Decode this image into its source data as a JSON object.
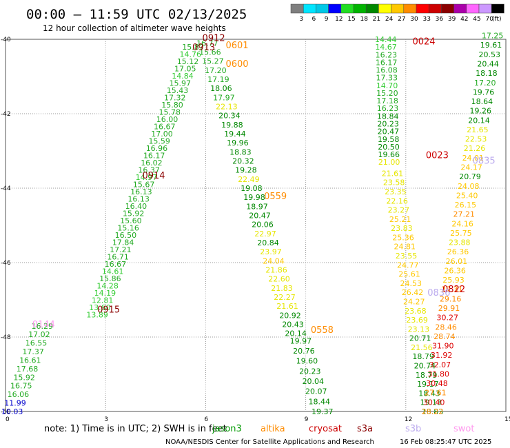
{
  "header": {
    "title": "00:00 – 11:59 UTC 02/13/2025",
    "subtitle": "12 hour collection of altimeter wave heights"
  },
  "colorbar": {
    "labels": [
      "3",
      "6",
      "9",
      "12",
      "15",
      "18",
      "21",
      "24",
      "27",
      "30",
      "33",
      "36",
      "39",
      "42",
      "45",
      "70"
    ],
    "unit": "(ft)",
    "colors": [
      "#7f7f7f",
      "#00e5ff",
      "#00c8e6",
      "#0000ff",
      "#22dd22",
      "#00b400",
      "#008800",
      "#ffff00",
      "#ffc800",
      "#ff8c00",
      "#ff0000",
      "#cc0000",
      "#8b0000",
      "#aa00aa",
      "#ff66ff",
      "#cc99ff",
      "#000000"
    ]
  },
  "legend": {
    "note": "note:  1) Time is in UTC;  2) SWH is in feet",
    "items": [
      {
        "name": "jason3",
        "color": "#009900"
      },
      {
        "name": "altika",
        "color": "#ff8c00"
      },
      {
        "name": "cryosat",
        "color": "#cc0000"
      },
      {
        "name": "s3a",
        "color": "#8b0000"
      },
      {
        "name": "s3b",
        "color": "#bbaaee"
      },
      {
        "name": "swot",
        "color": "#ff99ee"
      }
    ]
  },
  "credit": {
    "left": "NOAA/NESDIS Center for Satellite Applications and Research",
    "right": "16 Feb 08:25:47 UTC 2025"
  },
  "chart_data": {
    "type": "scatter",
    "xlim": [
      0,
      15
    ],
    "ylim": [
      -50,
      -40
    ],
    "xticks": [
      "0",
      "3",
      "6",
      "9",
      "12",
      "15"
    ],
    "yticks": [
      "-40",
      "-42",
      "-44",
      "-46",
      "-48",
      "-50"
    ],
    "grid": true,
    "time_labels": [
      {
        "x": 5.9,
        "y": -39.95,
        "t": "0912",
        "c": "#8b0000"
      },
      {
        "x": 5.6,
        "y": -40.2,
        "t": "0913",
        "c": "#8b0000"
      },
      {
        "x": 6.6,
        "y": -40.15,
        "t": "0601",
        "c": "#ff8c00"
      },
      {
        "x": 6.6,
        "y": -40.65,
        "t": "0600",
        "c": "#ff8c00"
      },
      {
        "x": 4.1,
        "y": -43.65,
        "t": "0914",
        "c": "#8b0000"
      },
      {
        "x": 2.75,
        "y": -47.25,
        "t": "0915",
        "c": "#8b0000"
      },
      {
        "x": 0.8,
        "y": -47.65,
        "t": "0144",
        "c": "#ff99ee"
      },
      {
        "x": 7.75,
        "y": -44.2,
        "t": "0559",
        "c": "#ff8c00"
      },
      {
        "x": 9.15,
        "y": -47.8,
        "t": "0558",
        "c": "#ff8c00"
      },
      {
        "x": 12.2,
        "y": -40.05,
        "t": "0024",
        "c": "#cc0000"
      },
      {
        "x": 12.6,
        "y": -43.1,
        "t": "0023",
        "c": "#cc0000"
      },
      {
        "x": 14.0,
        "y": -43.25,
        "t": "0835",
        "c": "#bbaaee"
      },
      {
        "x": 13.1,
        "y": -46.7,
        "t": "0822",
        "c": "#cc0000"
      },
      {
        "x": 12.65,
        "y": -46.8,
        "t": "0836",
        "c": "#bbaaee"
      }
    ],
    "tracks": [
      {
        "name": "s3a",
        "color": "#8b0000",
        "x0": 5.62,
        "x1": 2.75,
        "y0": -40.2,
        "y1": -47.4,
        "step": 0.2,
        "values": [
          15.87,
          14.76,
          15.12,
          17.05,
          14.84,
          15.97,
          15.43,
          17.32,
          15.8,
          15.78,
          16.0,
          16.67,
          17.0,
          15.59,
          16.96,
          16.17,
          16.02,
          16.37,
          14.97,
          15.67,
          16.13,
          16.13,
          16.4,
          15.92,
          15.6,
          15.16,
          16.5,
          17.84,
          17.21,
          16.71,
          16.67,
          14.61,
          15.86,
          14.28,
          14.19,
          12.81,
          13.6,
          13.89
        ]
      },
      {
        "name": "s3a-b",
        "color": "#008800",
        "x0": 1.1,
        "x1": 0.2,
        "y0": -47.7,
        "y1": -50.0,
        "step": 0.2,
        "values": [
          16.29,
          17.02,
          16.55,
          17.37,
          16.61,
          17.68,
          15.92,
          16.75,
          16.06,
          11.99,
          10.03
        ]
      },
      {
        "name": "altika",
        "color": "#ff8c00",
        "x0": 6.05,
        "x1": 8.7,
        "y0": -40.1,
        "y1": -47.9,
        "step": 0.2,
        "values": [
          16.77,
          15.66,
          15.27,
          17.2,
          17.19,
          18.06,
          17.97,
          22.13,
          20.34,
          19.88,
          19.44,
          19.96,
          18.83,
          20.32,
          19.28,
          22.49,
          19.08,
          19.98,
          18.97,
          20.47,
          20.06,
          22.97,
          20.84,
          23.97,
          24.04,
          21.86,
          22.6,
          21.83,
          22.27,
          21.61,
          20.92,
          20.43,
          20.14
        ]
      },
      {
        "name": "jason3",
        "color": "#009900",
        "x0": 8.85,
        "x1": 9.5,
        "y0": -48.1,
        "y1": -50.0,
        "step": 0.2,
        "values": [
          19.97,
          20.76,
          19.6,
          20.23,
          20.04,
          20.07,
          18.44,
          19.37
        ]
      },
      {
        "name": "cryosat",
        "color": "#cc0000",
        "x0": 11.4,
        "x1": 11.5,
        "y0": -40.0,
        "y1": -43.3,
        "step": 0.2,
        "values": [
          14.44,
          14.67,
          16.23,
          16.17,
          16.08,
          17.33,
          14.7,
          15.2,
          17.18,
          16.23,
          18.84,
          20.23,
          20.47,
          19.58,
          20.5,
          19.66,
          21.0
        ]
      },
      {
        "name": "swot",
        "color": "#cc0000",
        "x0": 11.6,
        "x1": 12.8,
        "y0": -43.6,
        "y1": -50.0,
        "step": 0.2,
        "values": [
          21.61,
          23.58,
          23.35,
          22.16,
          23.27,
          25.21,
          23.83,
          25.36,
          24.81,
          23.55,
          24.77,
          25.61,
          24.53,
          26.42,
          24.27,
          23.68,
          23.69,
          23.13,
          20.71,
          21.56,
          18.79,
          20.74,
          18.79,
          19.17,
          18.43,
          19.13,
          18.83
        ]
      },
      {
        "name": "s3b",
        "color": "#bbaaee",
        "x0": 14.6,
        "x1": 12.8,
        "y0": -39.9,
        "y1": -50.0,
        "step": 0.2,
        "values": [
          17.25,
          19.61,
          20.53,
          20.44,
          18.18,
          17.2,
          19.76,
          18.64,
          19.26,
          20.14,
          21.65,
          22.53,
          21.26,
          24.01,
          24.17,
          20.79,
          24.08,
          25.4,
          26.15,
          27.21,
          24.16,
          25.75,
          23.88,
          26.36,
          26.01,
          26.36,
          25.93,
          27.31,
          29.16,
          29.91,
          30.27,
          28.46,
          28.74,
          31.9,
          31.92,
          32.07,
          31.8,
          30.48,
          27.61,
          30.4,
          28.22
        ]
      }
    ]
  }
}
